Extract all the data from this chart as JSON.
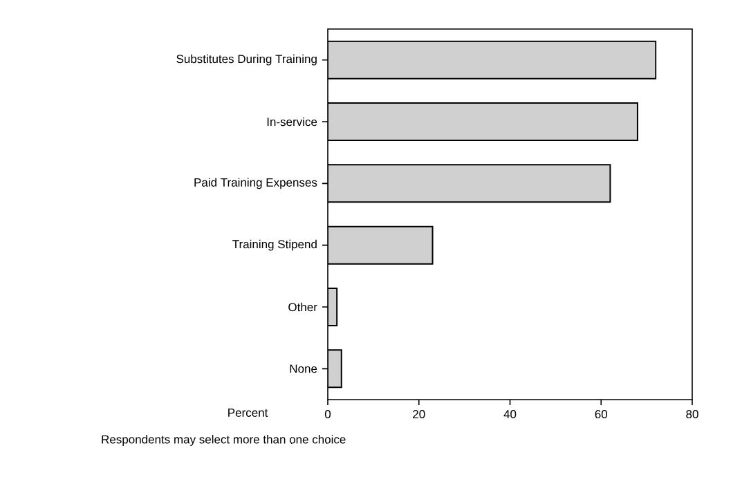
{
  "chart_data": {
    "type": "bar",
    "orientation": "horizontal",
    "categories": [
      "Substitutes During Training",
      "In-service",
      "Paid Training Expenses",
      "Training Stipend",
      "Other",
      "None"
    ],
    "values": [
      72,
      68,
      62,
      23,
      2,
      3
    ],
    "color": "#d0d0d0",
    "xlabel": "Percent",
    "xlim": [
      0,
      80
    ],
    "xticks": [
      0,
      20,
      40,
      60,
      80
    ],
    "grid": false,
    "annotations": [
      "Respondents may select more than one choice"
    ]
  }
}
